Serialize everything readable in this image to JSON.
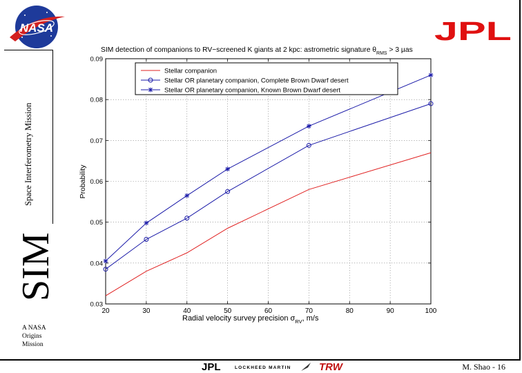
{
  "slide": {
    "mission_name": "Space Interferometry Mission",
    "sim_label": "SIM",
    "origins_lines": [
      "A NASA",
      "Origins",
      "Mission"
    ],
    "credit": "M. Shao - 16",
    "nasa_logo_text": "NASA",
    "jpl_logo_text": "JPL",
    "footer_logo_texts": [
      "JPL",
      "LOCKHEED MARTIN",
      "TRW"
    ]
  },
  "chart_data": {
    "type": "line",
    "title": "SIM detection of companions to RV−screened K giants at 2 kpc: astrometric signature θ",
    "title_sub": "RMS",
    "title_tail": " > 3 µas",
    "xlabel": "Radial velocity survey precision σ",
    "xlabel_sub": "RV",
    "xlabel_tail": ", m/s",
    "ylabel": "Probability",
    "xlim": [
      20,
      100
    ],
    "ylim": [
      0.03,
      0.09
    ],
    "x_ticks": [
      20,
      30,
      40,
      50,
      60,
      70,
      80,
      90,
      100
    ],
    "x_tick_labels": [
      "20",
      "30",
      "40",
      "50",
      "60",
      "70",
      "80",
      "90",
      "100"
    ],
    "y_ticks": [
      0.03,
      0.04,
      0.05,
      0.06,
      0.07,
      0.08,
      0.09
    ],
    "y_tick_labels": [
      "0.03",
      "0.04",
      "0.05",
      "0.06",
      "0.07",
      "0.08",
      "0.09"
    ],
    "grid": true,
    "legend_position": "top",
    "series": [
      {
        "name": "Stellar companion",
        "color": "#e02020",
        "marker": "none",
        "x": [
          20,
          30,
          40,
          50,
          70,
          100
        ],
        "y": [
          0.032,
          0.038,
          0.0425,
          0.0485,
          0.058,
          0.067
        ]
      },
      {
        "name": "Stellar OR planetary companion, Complete Brown Dwarf desert",
        "color": "#1a1aa8",
        "marker": "circle",
        "x": [
          20,
          30,
          40,
          50,
          70,
          100
        ],
        "y": [
          0.0385,
          0.0458,
          0.051,
          0.0575,
          0.0688,
          0.079
        ]
      },
      {
        "name": "Stellar OR planetary companion, Known Brown Dwarf desert",
        "color": "#1a1aa8",
        "marker": "star",
        "x": [
          20,
          30,
          40,
          50,
          70,
          100
        ],
        "y": [
          0.0405,
          0.0498,
          0.0565,
          0.063,
          0.0735,
          0.086
        ]
      }
    ]
  }
}
